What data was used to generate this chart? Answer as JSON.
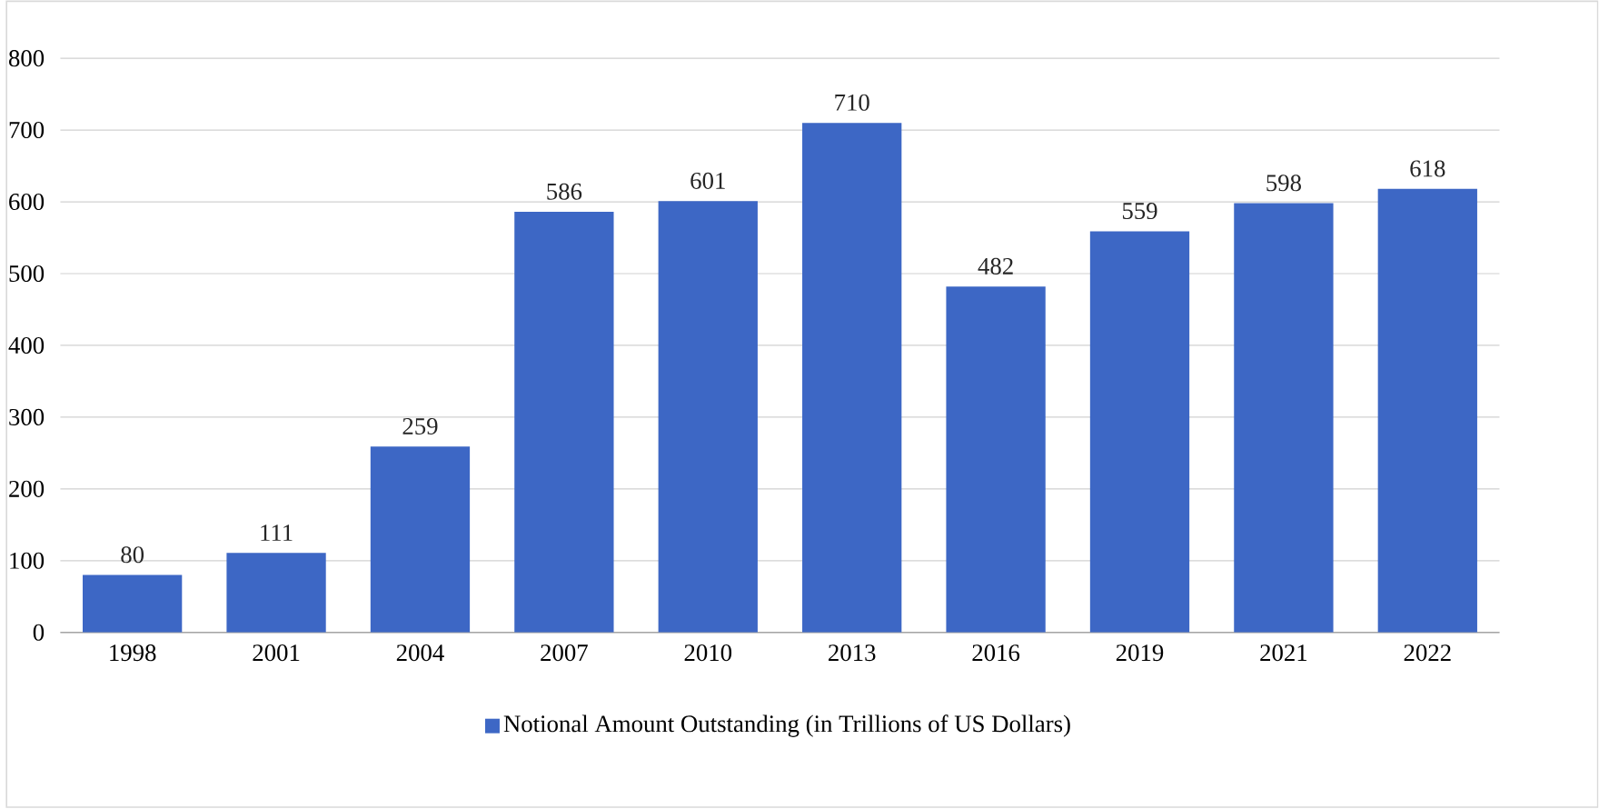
{
  "chart_data": {
    "type": "bar",
    "categories": [
      "1998",
      "2001",
      "2004",
      "2007",
      "2010",
      "2013",
      "2016",
      "2019",
      "2021",
      "2022"
    ],
    "series": [
      {
        "name": "Notional Amount Outstanding (in Trillions of US Dollars)",
        "color": "#3d67c5",
        "values": [
          80,
          111,
          259,
          586,
          601,
          710,
          482,
          559,
          598,
          618
        ]
      }
    ],
    "ylim": [
      0,
      800
    ],
    "yticks": [
      0,
      100,
      200,
      300,
      400,
      500,
      600,
      700,
      800
    ],
    "grid": "y",
    "legend": "bottom",
    "data_labels": true
  }
}
